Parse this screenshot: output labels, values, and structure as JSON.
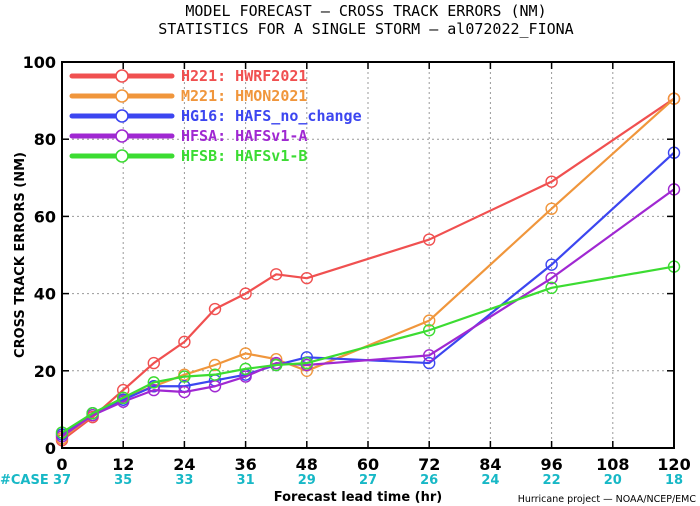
{
  "chart_data": {
    "type": "line",
    "title": [
      "MODEL FORECAST — CROSS TRACK ERRORS (NM)",
      "STATISTICS FOR A SINGLE STORM — al072022_FIONA"
    ],
    "xlabel": "Forecast lead time (hr)",
    "ylabel": "CROSS TRACK ERRORS (NM)",
    "xlim": [
      0,
      120
    ],
    "ylim": [
      0,
      100
    ],
    "xticks": [
      0,
      12,
      24,
      36,
      48,
      60,
      72,
      84,
      96,
      108,
      120
    ],
    "yticks": [
      0,
      20,
      40,
      60,
      80,
      100
    ],
    "grid": true,
    "legend_position": "top-left",
    "case_label": "#CASE",
    "cases": [
      37,
      35,
      33,
      31,
      29,
      27,
      26,
      24,
      22,
      20,
      18
    ],
    "credit": "Hurricane project — NOAA/NCEP/EMC",
    "series": [
      {
        "name": "H221:  HWRF2021",
        "color": "#f05050",
        "x": [
          0,
          6,
          12,
          18,
          24,
          30,
          36,
          42,
          48,
          72,
          96,
          120
        ],
        "y": [
          2,
          8,
          15,
          22,
          27.5,
          36,
          40,
          45,
          44,
          54,
          69,
          90.5
        ]
      },
      {
        "name": "M221:  HMON2021",
        "color": "#f0963c",
        "x": [
          0,
          6,
          12,
          18,
          24,
          30,
          36,
          42,
          48,
          72,
          96,
          120
        ],
        "y": [
          2.5,
          8.5,
          13,
          16,
          19,
          21.5,
          24.5,
          23,
          20,
          33,
          62,
          90.5
        ]
      },
      {
        "name": "HG16:  HAFS_no_change",
        "color": "#3c46f0",
        "x": [
          0,
          6,
          12,
          18,
          24,
          30,
          36,
          42,
          48,
          72,
          96,
          120
        ],
        "y": [
          3.5,
          9,
          12.5,
          16,
          16,
          17.5,
          19,
          21.5,
          23.5,
          22,
          47.5,
          76.5
        ]
      },
      {
        "name": "HFSA:  HAFSv1-A",
        "color": "#a028d2",
        "x": [
          0,
          6,
          12,
          18,
          24,
          30,
          36,
          42,
          48,
          72,
          96,
          120
        ],
        "y": [
          3,
          8.5,
          12,
          15,
          14.5,
          16,
          18.5,
          22,
          21.5,
          24,
          44,
          67
        ]
      },
      {
        "name": "HFSB:  HAFSv1-B",
        "color": "#3cdc32",
        "x": [
          0,
          6,
          12,
          18,
          24,
          30,
          36,
          42,
          48,
          72,
          96,
          120
        ],
        "y": [
          4,
          9,
          13,
          17,
          18.5,
          19,
          20.5,
          21.5,
          22,
          30.5,
          41.5,
          47
        ]
      }
    ]
  }
}
